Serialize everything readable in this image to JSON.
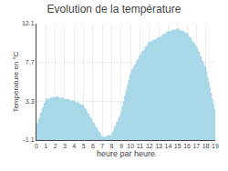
{
  "chart_data": {
    "type": "area",
    "title": "Evolution de la température",
    "x_label": "heure par heure",
    "y_label": "Température en °C",
    "x": [
      0,
      1,
      2,
      3,
      4,
      5,
      6,
      7,
      8,
      9,
      10,
      11,
      12,
      13,
      14,
      15,
      16,
      17,
      18,
      19
    ],
    "values": [
      0.5,
      3.5,
      3.8,
      3.6,
      3.3,
      2.8,
      1.0,
      -0.8,
      -0.5,
      2.0,
      6.5,
      8.5,
      10.0,
      10.5,
      11.2,
      11.5,
      11.0,
      9.5,
      7.0,
      2.0
    ],
    "color": "#a8d8e8",
    "line_style": "dotted",
    "xlim": [
      0,
      19
    ],
    "xticks": [
      0,
      1,
      2,
      3,
      4,
      5,
      6,
      7,
      8,
      9,
      10,
      11,
      12,
      13,
      14,
      15,
      16,
      17,
      18,
      19
    ],
    "ylim": [
      -1.1,
      12.1
    ],
    "yticks": [
      -1.1,
      3.3,
      7.7,
      12.1
    ],
    "grid": true
  }
}
